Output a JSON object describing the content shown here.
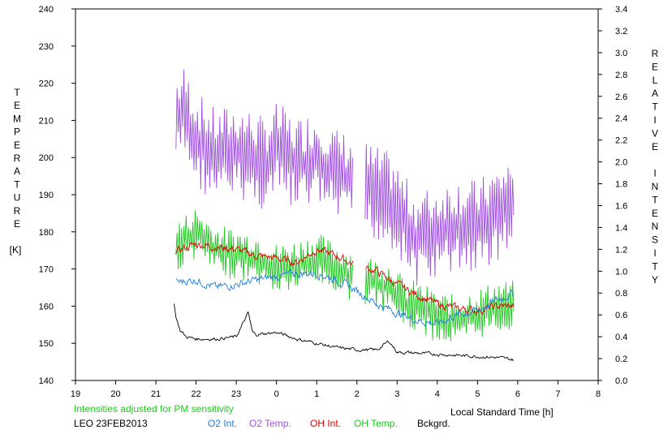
{
  "chart_data": {
    "type": "line",
    "title": "",
    "xlabel": "Local Standard Time [h]",
    "ylabel_left_letters": [
      "T",
      "E",
      "M",
      "P",
      "E",
      "R",
      "A",
      "T",
      "U",
      "R",
      "E"
    ],
    "ylabel_left_unit": "[K]",
    "ylabel_right_words": [
      [
        "R",
        "E",
        "L",
        "A",
        "T",
        "I",
        "V",
        "E"
      ],
      [
        "I",
        "N",
        "T",
        "E",
        "N",
        "S",
        "I",
        "T",
        "Y"
      ]
    ],
    "x_axis": {
      "range": [
        19,
        32
      ],
      "tick_labels": [
        "19",
        "20",
        "21",
        "22",
        "23",
        "0",
        "1",
        "2",
        "3",
        "4",
        "5",
        "6",
        "7",
        "8"
      ]
    },
    "y_left": {
      "range": [
        140,
        240
      ],
      "tick_labels": [
        "140",
        "150",
        "160",
        "170",
        "180",
        "190",
        "200",
        "210",
        "220",
        "230",
        "240"
      ]
    },
    "y_right": {
      "range": [
        0.0,
        3.4
      ],
      "tick_labels": [
        "0.0",
        "0.2",
        "0.4",
        "0.6",
        "0.8",
        "1.0",
        "1.2",
        "1.4",
        "1.6",
        "1.8",
        "2.0",
        "2.2",
        "2.4",
        "2.6",
        "2.8",
        "3.0",
        "3.2",
        "3.4"
      ]
    },
    "grid": false,
    "note": "Intensities adjusted for PM sensitivity",
    "station": "LEO 23FEB2013",
    "legend": [
      {
        "name": "O2 Int.",
        "color": "#1E7FE0"
      },
      {
        "name": "O2 Temp.",
        "color": "#A050E0"
      },
      {
        "name": "OH Int.",
        "color": "#DD0000"
      },
      {
        "name": "OH Temp.",
        "color": "#22C822"
      },
      {
        "name": "Bckgrd.",
        "color": "#000000"
      }
    ],
    "series": [
      {
        "name": "O2 Temp.",
        "axis": "left",
        "color": "#A050E0",
        "style": "noisy",
        "x": [
          21.5,
          21.7,
          22.0,
          22.5,
          23.0,
          23.4,
          23.7,
          24.0,
          24.5,
          25.0,
          25.5,
          26.0,
          26.5,
          26.9,
          27.2,
          27.5,
          28.0,
          28.5,
          29.0,
          29.5,
          29.9
        ],
        "y": [
          210,
          212,
          205,
          200,
          202,
          200,
          198,
          202,
          198,
          200,
          195,
          193,
          190,
          188,
          182,
          178,
          180,
          182,
          181,
          185,
          188
        ],
        "amplitude": 13,
        "gap": [
          25.9,
          26.2
        ]
      },
      {
        "name": "OH Temp.",
        "axis": "left",
        "color": "#22C822",
        "style": "noisy",
        "x": [
          21.5,
          22.0,
          22.5,
          23.0,
          23.5,
          24.0,
          24.5,
          25.0,
          25.5,
          26.0,
          26.5,
          26.9,
          27.2,
          27.5,
          28.0,
          28.5,
          29.0,
          29.5,
          29.9
        ],
        "y": [
          176,
          180,
          175,
          174,
          173,
          170,
          171,
          173,
          170,
          168,
          166,
          165,
          160,
          160,
          157,
          156,
          158,
          160,
          160
        ],
        "amplitude": 7,
        "gap": [
          25.9,
          26.2
        ]
      },
      {
        "name": "OH Int.",
        "axis": "right",
        "color": "#DD0000",
        "style": "wiggle",
        "x": [
          21.5,
          22.0,
          22.5,
          23.0,
          23.5,
          24.0,
          24.5,
          25.0,
          25.5,
          26.0,
          26.5,
          26.9,
          27.2,
          27.5,
          28.0,
          28.5,
          29.0,
          29.5,
          29.9
        ],
        "y": [
          1.18,
          1.25,
          1.22,
          1.2,
          1.14,
          1.12,
          1.08,
          1.2,
          1.14,
          1.05,
          1.0,
          0.9,
          0.84,
          0.78,
          0.7,
          0.66,
          0.64,
          0.68,
          0.68
        ],
        "amplitude": 0.03,
        "gap": [
          25.9,
          26.2
        ]
      },
      {
        "name": "O2 Int.",
        "axis": "right",
        "color": "#1E7FE0",
        "style": "wiggle",
        "x": [
          21.5,
          22.0,
          22.5,
          23.0,
          23.5,
          24.0,
          24.5,
          25.0,
          25.5,
          26.0,
          26.5,
          27.0,
          27.5,
          28.0,
          28.5,
          29.0,
          29.5,
          29.9
        ],
        "y": [
          0.9,
          0.92,
          0.85,
          0.88,
          0.92,
          0.95,
          0.98,
          0.98,
          0.92,
          0.82,
          0.7,
          0.62,
          0.55,
          0.52,
          0.6,
          0.64,
          0.74,
          0.8
        ],
        "amplitude": 0.03
      },
      {
        "name": "Bckgrd.",
        "axis": "right",
        "color": "#000000",
        "style": "wiggle",
        "x": [
          21.45,
          21.5,
          21.6,
          21.75,
          22.0,
          22.5,
          23.0,
          23.3,
          23.4,
          23.5,
          24.0,
          24.5,
          25.0,
          25.5,
          26.0,
          26.5,
          26.8,
          27.0,
          27.5,
          28.0,
          28.5,
          29.0,
          29.5,
          29.9
        ],
        "y": [
          0.7,
          0.58,
          0.46,
          0.4,
          0.38,
          0.38,
          0.4,
          0.62,
          0.44,
          0.42,
          0.44,
          0.38,
          0.34,
          0.3,
          0.28,
          0.28,
          0.36,
          0.26,
          0.25,
          0.24,
          0.23,
          0.22,
          0.21,
          0.19
        ],
        "amplitude": 0.012
      }
    ]
  }
}
